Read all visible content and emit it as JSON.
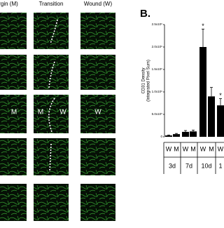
{
  "figure": {
    "panel_label": "B.",
    "column_headers": [
      "rgin (M)",
      "Transition",
      "Wound (W)"
    ],
    "panel_annotations": [
      "M",
      "M",
      "W",
      "W"
    ]
  },
  "chart_data": {
    "type": "bar",
    "y_label_lines": [
      "CD31 Density",
      "(Integrated Pixel Sum)"
    ],
    "categories": [
      "W",
      "M",
      "W",
      "M",
      "W",
      "M",
      "W"
    ],
    "groups": [
      "3d",
      "7d",
      "10d",
      "1"
    ],
    "series": [
      {
        "color": "#000000",
        "values": [
          30000,
          60000,
          110000,
          120000,
          2000000,
          900000,
          700000
        ],
        "errors": [
          10000,
          15000,
          30000,
          30000,
          400000,
          200000,
          150000
        ]
      }
    ],
    "annotations": [
      "*",
      "*"
    ],
    "ylim": [
      0,
      2500000
    ],
    "yticks": [
      0,
      {
        "value": 500000,
        "label": "5.0x10⁵"
      },
      {
        "value": 1000000,
        "label": "1.0x10⁶"
      },
      {
        "value": 1500000,
        "label": "1.5x10⁶"
      },
      {
        "value": 2000000,
        "label": "2.0x10⁶"
      },
      {
        "value": 2500000,
        "label": "2.5x10⁶"
      }
    ]
  }
}
